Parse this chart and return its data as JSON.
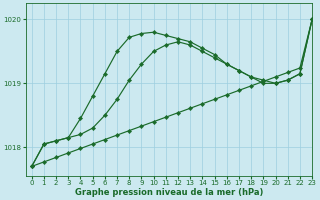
{
  "xlabel": "Graphe pression niveau de la mer (hPa)",
  "xlim": [
    -0.5,
    23
  ],
  "ylim": [
    1017.55,
    1020.25
  ],
  "yticks": [
    1018,
    1019,
    1020
  ],
  "xticks": [
    0,
    1,
    2,
    3,
    4,
    5,
    6,
    7,
    8,
    9,
    10,
    11,
    12,
    13,
    14,
    15,
    16,
    17,
    18,
    19,
    20,
    21,
    22,
    23
  ],
  "bg_color": "#cce9f0",
  "grid_color": "#9ecfdf",
  "line_color": "#1a6b2a",
  "line_straight": [
    1017.7,
    1017.77,
    1017.84,
    1017.91,
    1017.98,
    1018.05,
    1018.12,
    1018.19,
    1018.26,
    1018.33,
    1018.4,
    1018.47,
    1018.54,
    1018.61,
    1018.68,
    1018.75,
    1018.82,
    1018.89,
    1018.96,
    1019.03,
    1019.1,
    1019.17,
    1019.24,
    1020.0
  ],
  "line_mid": [
    1017.7,
    1018.05,
    1018.1,
    1018.15,
    1018.2,
    1018.3,
    1018.5,
    1018.75,
    1019.05,
    1019.3,
    1019.5,
    1019.6,
    1019.65,
    1019.6,
    1019.5,
    1019.4,
    1019.3,
    1019.2,
    1019.1,
    1019.05,
    1019.0,
    1019.05,
    1019.15,
    1020.0
  ],
  "line_high": [
    1017.7,
    1018.05,
    1018.1,
    1018.15,
    1018.45,
    1018.8,
    1019.15,
    1019.5,
    1019.72,
    1019.78,
    1019.8,
    1019.75,
    1019.7,
    1019.65,
    1019.55,
    1019.45,
    1019.3,
    1019.2,
    1019.1,
    1019.0,
    1019.0,
    1019.05,
    1019.15,
    1020.0
  ],
  "marker_size": 2.2,
  "linewidth": 0.85,
  "tick_labelsize": 5.0,
  "xlabel_fontsize": 6.0
}
